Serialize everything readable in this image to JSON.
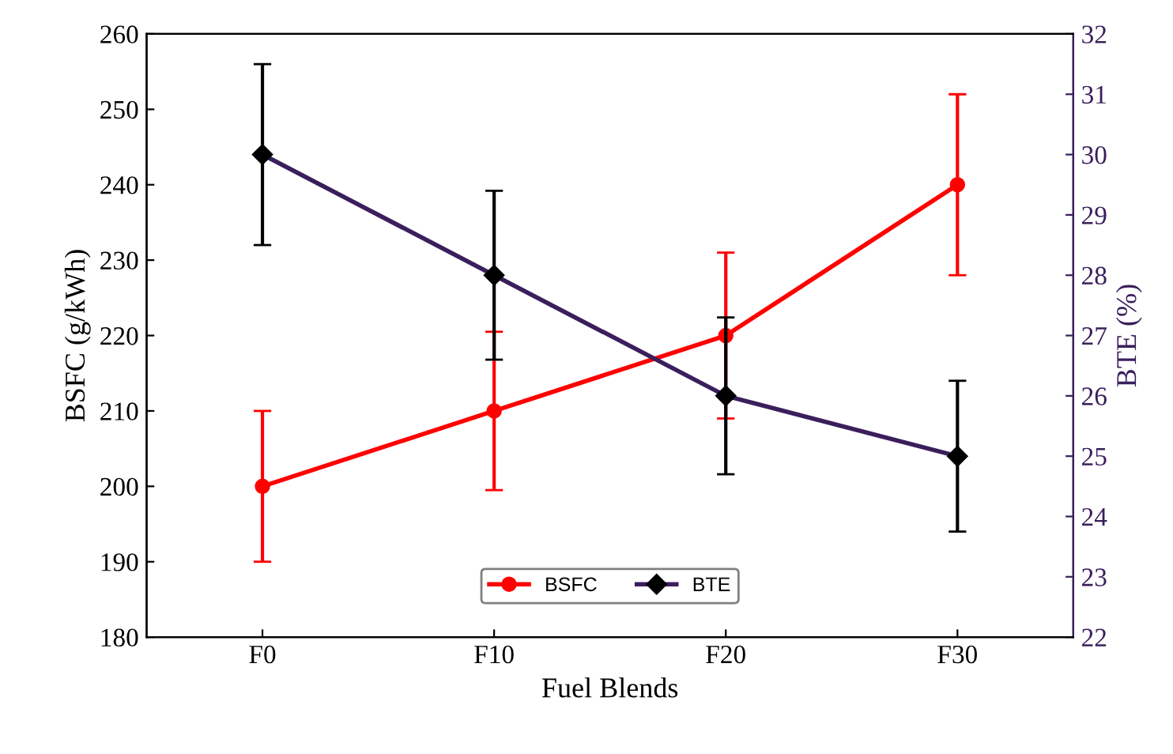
{
  "chart_data": {
    "type": "line",
    "categories": [
      "F0",
      "F10",
      "F20",
      "F30"
    ],
    "xlabel": "Fuel Blends",
    "ylabel": "BSFC (g/kWh)",
    "y2label": "BTE (%)",
    "ylim": [
      180,
      260
    ],
    "yticks": [
      180,
      190,
      200,
      210,
      220,
      230,
      240,
      250,
      260
    ],
    "y2lim": [
      22,
      32
    ],
    "y2ticks": [
      22,
      23,
      24,
      25,
      26,
      27,
      28,
      29,
      30,
      31,
      32
    ],
    "legend": "bottom",
    "grid": false,
    "series": [
      {
        "name": "BSFC",
        "color": "#ff0000",
        "marker": "circle",
        "values": [
          200,
          210,
          220,
          240
        ],
        "errors": [
          10,
          10.5,
          11,
          12
        ]
      },
      {
        "name": "BTE",
        "color": "#3a1f5c",
        "marker": "diamond",
        "axis": "y2",
        "values": [
          30,
          28,
          26,
          25
        ],
        "errors": [
          1.5,
          1.4,
          1.3,
          1.25
        ]
      }
    ]
  }
}
